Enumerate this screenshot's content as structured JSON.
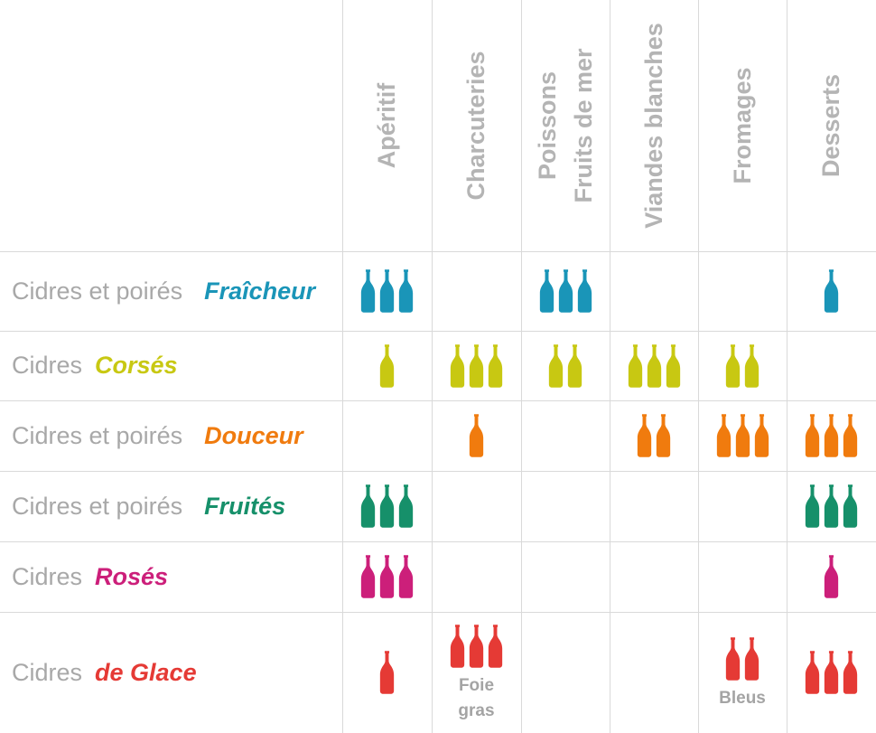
{
  "columns": [
    "Apéritif",
    "Charcuteries",
    "Poissons\nFruits de mer",
    "Viandes blanches",
    "Fromages",
    "Desserts"
  ],
  "rows": [
    {
      "base": "Cidres et poirés",
      "accent": "Fraîcheur",
      "color": "#1a95b8",
      "counts": [
        3,
        0,
        3,
        0,
        0,
        1
      ],
      "notes": [
        "",
        "",
        "",
        "",
        "",
        ""
      ]
    },
    {
      "base": "Cidres",
      "accent": "Corsés",
      "color": "#c8c812",
      "counts": [
        1,
        3,
        2,
        3,
        2,
        0
      ],
      "notes": [
        "",
        "",
        "",
        "",
        "",
        ""
      ]
    },
    {
      "base": "Cidres et poirés",
      "accent": "Douceur",
      "color": "#f07b0e",
      "counts": [
        0,
        1,
        0,
        2,
        3,
        3
      ],
      "notes": [
        "",
        "",
        "",
        "",
        "",
        ""
      ]
    },
    {
      "base": "Cidres et poirés",
      "accent": "Fruités",
      "color": "#16906a",
      "counts": [
        3,
        0,
        0,
        0,
        0,
        3
      ],
      "notes": [
        "",
        "",
        "",
        "",
        "",
        ""
      ]
    },
    {
      "base": "Cidres",
      "accent": "Rosés",
      "color": "#cc1f7a",
      "counts": [
        3,
        0,
        0,
        0,
        0,
        1
      ],
      "notes": [
        "",
        "",
        "",
        "",
        "",
        ""
      ]
    },
    {
      "base": "Cidres",
      "accent": "de Glace",
      "color": "#e53a35",
      "counts": [
        1,
        3,
        0,
        0,
        2,
        3
      ],
      "notes": [
        "",
        "Foie\ngras",
        "",
        "",
        "Bleus",
        ""
      ]
    }
  ]
}
